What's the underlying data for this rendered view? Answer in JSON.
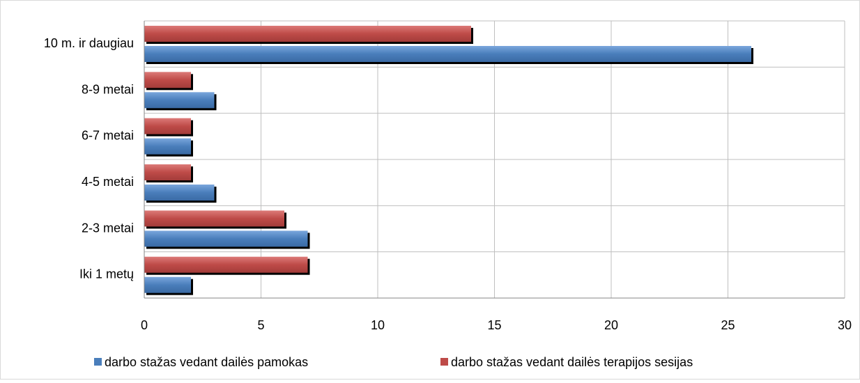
{
  "chart_data": {
    "type": "bar",
    "orientation": "horizontal",
    "categories": [
      "Iki 1 metų",
      "2-3 metai",
      "4-5 metai",
      "6-7 metai",
      "8-9 metai",
      "10 m. ir daugiau"
    ],
    "series": [
      {
        "name": "darbo stažas vedant dailės pamokas",
        "color": "#4a7ebb",
        "values": [
          2,
          7,
          3,
          2,
          3,
          26
        ]
      },
      {
        "name": "darbo stažas vedant dailės terapijos sesijas",
        "color": "#be4b48",
        "values": [
          7,
          6,
          2,
          2,
          2,
          14
        ]
      }
    ],
    "xlim": [
      0,
      30
    ],
    "xticks": [
      0,
      5,
      10,
      15,
      20,
      25,
      30
    ],
    "grid": true,
    "legend": "bottom"
  }
}
